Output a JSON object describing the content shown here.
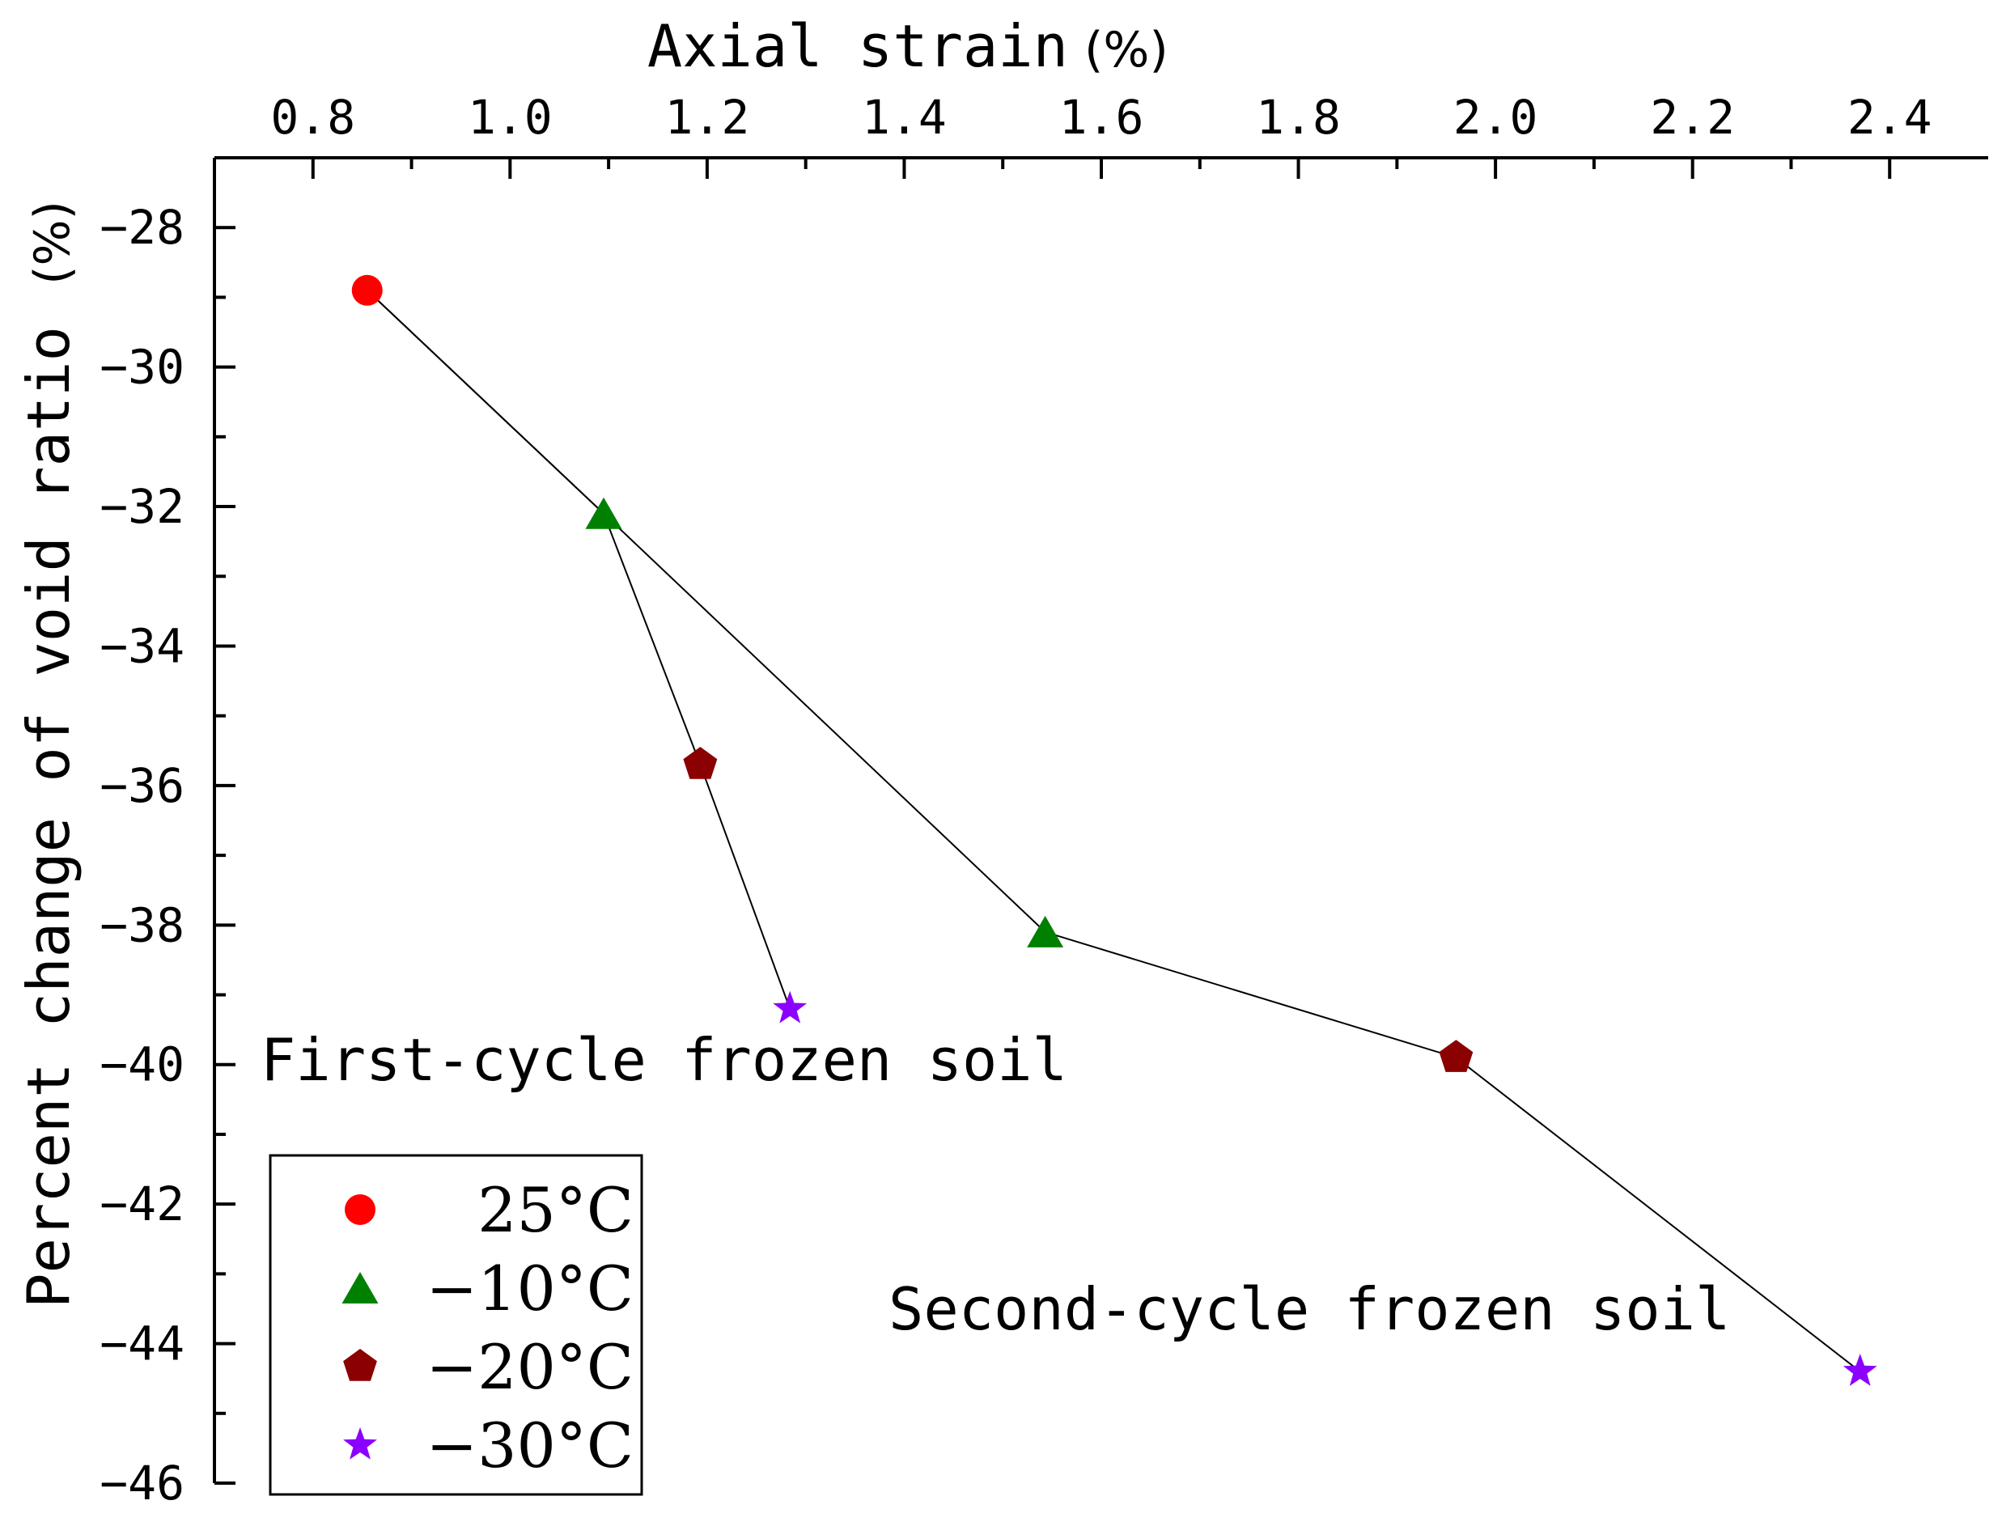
{
  "chart_data": {
    "type": "scatter",
    "title": "",
    "xlabel": "Axial strain",
    "xlabel_unit": "(%)",
    "ylabel": "Percent change  of void ratio",
    "ylabel_unit": "(%)",
    "xlim": [
      0.7,
      2.5
    ],
    "ylim": [
      -46,
      -27
    ],
    "x_ticks": [
      0.8,
      1.0,
      1.2,
      1.4,
      1.6,
      1.8,
      2.0,
      2.2,
      2.4
    ],
    "x_tick_labels": [
      "0.8",
      "1.0",
      "1.2",
      "1.4",
      "1.6",
      "1.8",
      "2.0",
      "2.2",
      "2.4"
    ],
    "y_ticks": [
      -28,
      -30,
      -32,
      -34,
      -36,
      -38,
      -40,
      -42,
      -44,
      -46
    ],
    "y_tick_labels": [
      "−28",
      "−30",
      "−32",
      "−34",
      "−36",
      "−38",
      "−40",
      "−42",
      "−44",
      "−46"
    ],
    "x_axis_position": "top",
    "grid": false,
    "legend_position": "bottom-left",
    "legend": [
      {
        "name": "25°C",
        "marker": "circle",
        "color": "#ff0000"
      },
      {
        "name": "−10°C",
        "marker": "triangle",
        "color": "#008000"
      },
      {
        "name": "−20°C",
        "marker": "pentagon",
        "color": "#8b0000"
      },
      {
        "name": "−30°C",
        "marker": "star",
        "color": "#8b00ff"
      }
    ],
    "series": [
      {
        "name": "First-cycle frozen soil",
        "points": [
          {
            "x": 0.855,
            "y": -28.9,
            "group": "25°C"
          },
          {
            "x": 1.095,
            "y": -32.1,
            "group": "−10°C"
          },
          {
            "x": 1.193,
            "y": -35.7,
            "group": "−20°C"
          },
          {
            "x": 1.284,
            "y": -39.2,
            "group": "−30°C"
          }
        ]
      },
      {
        "name": "Second-cycle frozen soil",
        "points": [
          {
            "x": 0.855,
            "y": -28.9,
            "group": "25°C"
          },
          {
            "x": 1.095,
            "y": -32.1,
            "group": "−10°C"
          },
          {
            "x": 1.543,
            "y": -38.1,
            "group": "−10°C"
          },
          {
            "x": 1.96,
            "y": -39.9,
            "group": "−20°C"
          },
          {
            "x": 2.37,
            "y": -44.4,
            "group": "−30°C"
          }
        ]
      }
    ],
    "annotations": [
      "First-cycle frozen soil",
      "Second-cycle frozen soil"
    ]
  }
}
